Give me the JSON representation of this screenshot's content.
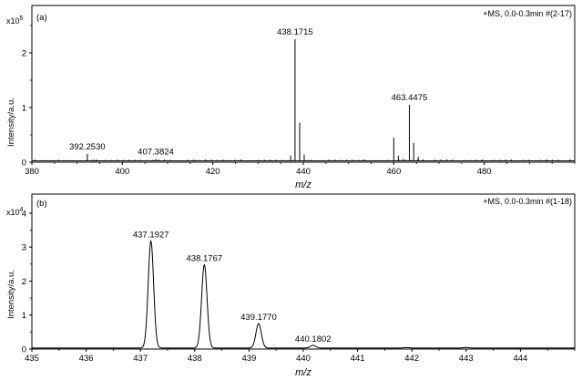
{
  "chart_data": [
    {
      "type": "line",
      "panel_label": "(a)",
      "annotation": "+MS, 0.0-0.3min #(2-17)",
      "scale_label": "x10",
      "scale_exp": "5",
      "ylabel": "Intensity/a.u.",
      "xlabel": "m/z",
      "xlim": [
        380,
        500
      ],
      "ylim": [
        0,
        2.7
      ],
      "xticks": [
        "380",
        "400",
        "420",
        "440",
        "460",
        "480"
      ],
      "yticks": [
        "0",
        "1",
        "2"
      ],
      "grid": false,
      "peaks": [
        {
          "x": 392.253,
          "y": 0.15
        },
        {
          "x": 393.2,
          "y": 0.04
        },
        {
          "x": 394.3,
          "y": 0.05
        },
        {
          "x": 407.3824,
          "y": 0.06
        },
        {
          "x": 408.4,
          "y": 0.02
        },
        {
          "x": 437.2,
          "y": 0.12
        },
        {
          "x": 438.1715,
          "y": 2.25
        },
        {
          "x": 439.2,
          "y": 0.72
        },
        {
          "x": 440.2,
          "y": 0.14
        },
        {
          "x": 441.2,
          "y": 0.04
        },
        {
          "x": 453.3,
          "y": 0.05
        },
        {
          "x": 460.0,
          "y": 0.45
        },
        {
          "x": 461.0,
          "y": 0.12
        },
        {
          "x": 462.0,
          "y": 0.06
        },
        {
          "x": 463.4475,
          "y": 1.05
        },
        {
          "x": 464.4,
          "y": 0.35
        },
        {
          "x": 465.4,
          "y": 0.1
        },
        {
          "x": 476.3,
          "y": 0.03
        },
        {
          "x": 490.1,
          "y": 0.02
        }
      ],
      "labels": [
        {
          "x": 392.253,
          "y": 0.15,
          "text": "392.2530"
        },
        {
          "x": 407.3824,
          "y": 0.06,
          "text": "407.3824"
        },
        {
          "x": 438.1715,
          "y": 2.25,
          "text": "438.1715"
        },
        {
          "x": 463.4475,
          "y": 1.05,
          "text": "463.4475"
        }
      ]
    },
    {
      "type": "line",
      "panel_label": "(b)",
      "annotation": "+MS, 0.0-0.3min #(1-18)",
      "scale_label": "x10",
      "scale_exp": "4",
      "ylabel": "Intensity/a.u.",
      "xlabel": "m/z",
      "xlim": [
        435,
        445
      ],
      "ylim": [
        0,
        4.4
      ],
      "xticks": [
        "435",
        "436",
        "437",
        "438",
        "439",
        "440",
        "441",
        "442",
        "443",
        "444"
      ],
      "yticks": [
        "0",
        "1",
        "2",
        "3",
        "4"
      ],
      "grid": false,
      "peaks": [
        {
          "x": 437.1927,
          "y": 3.15,
          "w": 0.05
        },
        {
          "x": 438.1767,
          "y": 2.45,
          "w": 0.05
        },
        {
          "x": 439.177,
          "y": 0.72,
          "w": 0.05
        },
        {
          "x": 440.1802,
          "y": 0.08,
          "w": 0.05
        },
        {
          "x": 441.9,
          "y": 0.015,
          "w": 0.05
        },
        {
          "x": 443.0,
          "y": 0.015,
          "w": 0.05
        }
      ],
      "labels": [
        {
          "x": 437.1927,
          "y": 3.15,
          "text": "437.1927"
        },
        {
          "x": 438.1767,
          "y": 2.45,
          "text": "438.1767"
        },
        {
          "x": 439.177,
          "y": 0.72,
          "text": "439.1770"
        },
        {
          "x": 440.1802,
          "y": 0.08,
          "text": "440.1802"
        }
      ]
    }
  ]
}
